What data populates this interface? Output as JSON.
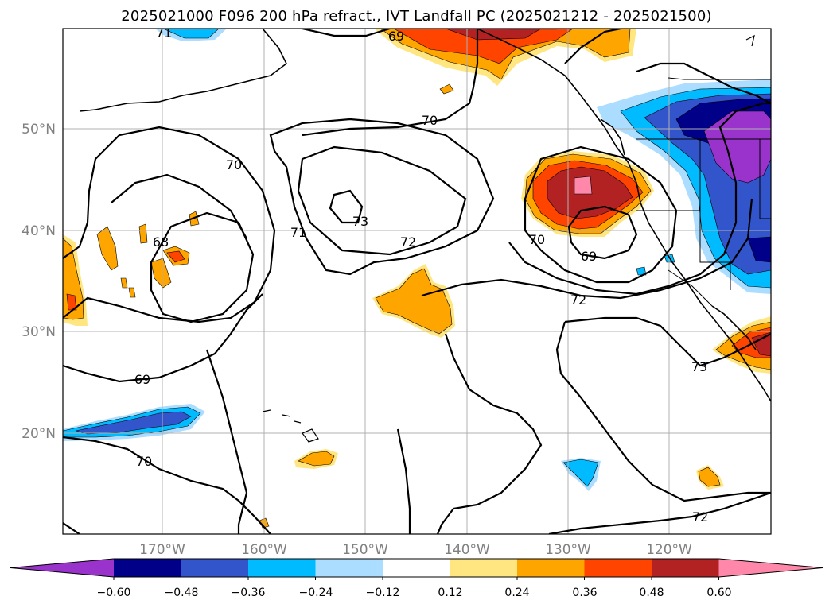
{
  "title": "2025021000 F096 200 hPa refract., IVT Landfall PC (2025021212 - 2025021500)",
  "lat_labels": [
    "50°N",
    "40°N",
    "30°N",
    "20°N"
  ],
  "lon_labels": [
    "170°W",
    "160°W",
    "150°W",
    "140°W",
    "130°W",
    "120°W"
  ],
  "colorbar": {
    "ticks": [
      "−0.60",
      "−0.48",
      "−0.36",
      "−0.24",
      "−0.12",
      "0.12",
      "0.24",
      "0.36",
      "0.48",
      "0.60"
    ],
    "colors": [
      "#9933cc",
      "#000088",
      "#3355cc",
      "#00bbff",
      "#aaddff",
      "#ffffff",
      "#ffe680",
      "#ffa500",
      "#ff4400",
      "#b22222",
      "#ff88aa"
    ]
  },
  "contour_labels": [
    "71",
    "69",
    "70",
    "70",
    "73",
    "72",
    "70",
    "69",
    "68",
    "71",
    "72",
    "73",
    "69",
    "70",
    "72"
  ]
}
